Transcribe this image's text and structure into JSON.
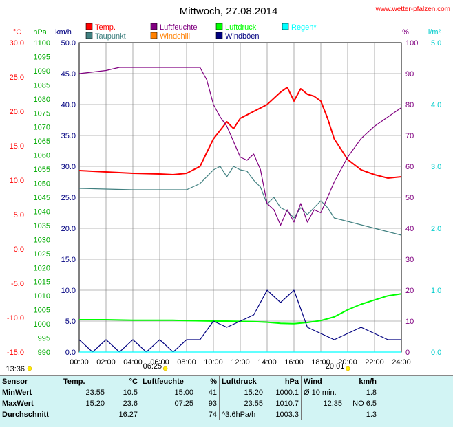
{
  "site_link": "www.wetter-pfalzen.com",
  "chart_data": {
    "type": "line",
    "title": "Mittwoch, 27.08.2014",
    "legend": [
      {
        "name": "Temp.",
        "color": "#ff0000"
      },
      {
        "name": "Taupunkt",
        "color": "#408080"
      },
      {
        "name": "Luftfeuchte",
        "color": "#800080"
      },
      {
        "name": "Windchill",
        "color": "#ff8000"
      },
      {
        "name": "Luftdruck",
        "color": "#00ff00"
      },
      {
        "name": "Windböen",
        "color": "#000080"
      },
      {
        "name": "Regen*",
        "color": "#00ffff"
      }
    ],
    "axes": {
      "temp": {
        "unit": "°C",
        "color": "#ff0000",
        "min": -15,
        "max": 30,
        "ticks": [
          "30.0",
          "25.0",
          "20.0",
          "15.0",
          "10.0",
          "5.0",
          "0.0",
          "-5.0",
          "-10.0",
          "-15.0"
        ]
      },
      "pressure": {
        "unit": "hPa",
        "color": "#00aa00",
        "min": 990,
        "max": 1100,
        "ticks": [
          "1100",
          "1095",
          "1090",
          "1085",
          "1080",
          "1075",
          "1070",
          "1065",
          "1060",
          "1055",
          "1050",
          "1045",
          "1040",
          "1035",
          "1030",
          "1025",
          "1020",
          "1015",
          "1010",
          "1005",
          "1000",
          "995",
          "990"
        ]
      },
      "wind": {
        "unit": "km/h",
        "color": "#000080",
        "min": 0,
        "max": 50,
        "ticks": [
          "50.0",
          "45.0",
          "40.0",
          "35.0",
          "30.0",
          "25.0",
          "20.0",
          "15.0",
          "10.0",
          "5.0",
          "0.0"
        ]
      },
      "humidity": {
        "unit": "%",
        "color": "#800080",
        "min": 0,
        "max": 100,
        "ticks": [
          "100",
          "90",
          "80",
          "70",
          "60",
          "50",
          "40",
          "30",
          "20",
          "10",
          "0"
        ]
      },
      "rain": {
        "unit": "l/m²",
        "color": "#00cccc",
        "min": 0,
        "max": 5,
        "ticks": [
          "5.0",
          "4.0",
          "3.0",
          "2.0",
          "1.0",
          "0.0"
        ]
      },
      "x": {
        "min": 0,
        "max": 24,
        "ticks": [
          "00:00",
          "02:00",
          "04:00",
          "06:00",
          "08:00",
          "10:00",
          "12:00",
          "14:00",
          "16:00",
          "18:00",
          "20:00",
          "22:00",
          "24:00"
        ]
      }
    },
    "grid": true,
    "sunrise": "06:25",
    "sunset": "20:01",
    "moonrise": "13:36",
    "series": [
      {
        "name": "Temp.",
        "axis": "temp",
        "x": [
          0,
          2,
          4,
          6,
          7,
          8,
          9,
          10,
          11,
          11.5,
          12,
          12.5,
          13,
          14,
          15,
          15.5,
          16,
          16.5,
          17,
          17.5,
          18,
          18.5,
          19,
          20,
          21,
          22,
          23,
          24
        ],
        "y": [
          11.4,
          11.2,
          11.0,
          10.9,
          10.8,
          11.0,
          12.0,
          16.0,
          18.5,
          17.5,
          19.0,
          19.5,
          20.0,
          21.0,
          22.8,
          23.5,
          21.5,
          23.3,
          22.5,
          22.2,
          21.5,
          19.0,
          16.0,
          13.0,
          11.5,
          10.8,
          10.3,
          10.5
        ]
      },
      {
        "name": "Taupunkt",
        "axis": "temp",
        "x": [
          0,
          2,
          4,
          6,
          8,
          9,
          10,
          10.5,
          11,
          11.5,
          12,
          12.5,
          13,
          13.5,
          14,
          14.5,
          15,
          15.5,
          16,
          16.5,
          17,
          17.5,
          18,
          18.5,
          19,
          20,
          22,
          24
        ],
        "y": [
          8.8,
          8.7,
          8.6,
          8.6,
          8.6,
          9.5,
          11.5,
          12.0,
          10.5,
          12.0,
          11.5,
          11.3,
          10.0,
          9.0,
          6.5,
          7.5,
          6.0,
          5.5,
          4.5,
          6.0,
          5.0,
          6.0,
          7.0,
          6.0,
          4.5,
          4.0,
          3.0,
          2.0
        ]
      },
      {
        "name": "Luftfeuchte",
        "axis": "humidity",
        "x": [
          0,
          2,
          3,
          4,
          6,
          7,
          8,
          9,
          9.5,
          10,
          10.5,
          11,
          11.5,
          12,
          12.5,
          13,
          13.5,
          14,
          14.5,
          15,
          15.5,
          16,
          16.5,
          17,
          17.5,
          18,
          18.5,
          19,
          20,
          21,
          22,
          23,
          24
        ],
        "y": [
          90,
          91,
          92,
          92,
          92,
          92,
          92,
          92,
          88,
          80,
          76,
          73,
          68,
          63,
          62,
          64,
          59,
          48,
          46,
          41,
          46,
          42,
          48,
          42,
          46,
          45,
          50,
          55,
          63,
          69,
          73,
          76,
          79
        ]
      },
      {
        "name": "Luftdruck",
        "axis": "pressure",
        "x": [
          0,
          2,
          3,
          4,
          6,
          7,
          8,
          9,
          10,
          11,
          12,
          13,
          14,
          15,
          16,
          17,
          18,
          19,
          20,
          21,
          22,
          23,
          24
        ],
        "y": [
          1001.5,
          1001.5,
          1001.4,
          1001.3,
          1001.3,
          1001.3,
          1001.2,
          1001.1,
          1001.0,
          1001.0,
          1000.9,
          1000.8,
          1000.6,
          1000.2,
          1000.1,
          1000.5,
          1001.2,
          1002.5,
          1005.0,
          1007.0,
          1008.5,
          1010.0,
          1010.7
        ]
      },
      {
        "name": "Windböen",
        "axis": "wind",
        "x": [
          0,
          1,
          2,
          3,
          4,
          5,
          6,
          7,
          8,
          9,
          10,
          11,
          12,
          13,
          14,
          15,
          16,
          17,
          18,
          19,
          20,
          21,
          22,
          23,
          24
        ],
        "y": [
          2,
          0,
          2,
          0,
          2,
          0,
          2,
          0,
          2,
          2,
          5,
          4,
          5,
          6,
          10,
          8,
          10,
          4,
          3,
          2,
          3,
          4,
          3,
          2,
          2
        ]
      },
      {
        "name": "Regen*",
        "axis": "rain",
        "x": [
          0,
          24
        ],
        "y": [
          0,
          0
        ]
      }
    ]
  },
  "stats": {
    "headers": {
      "sensor": "Sensor",
      "temp": "Temp.",
      "temp_unit": "°C",
      "hum": "Luftfeuchte",
      "hum_unit": "%",
      "press": "Luftdruck",
      "press_unit": "hPa",
      "wind": "Wind",
      "wind_unit": "km/h"
    },
    "rows": [
      {
        "label": "MinWert",
        "t_time": "23:55",
        "t_val": "10.5",
        "h_time": "15:00",
        "h_val": "41",
        "p_time": "15:20",
        "p_val": "1000.1",
        "w_a": "Ø 10 min.",
        "w_b": "1.8"
      },
      {
        "label": "MaxWert",
        "t_time": "15:20",
        "t_val": "23.6",
        "h_time": "07:25",
        "h_val": "93",
        "p_time": "23:55",
        "p_val": "1010.7",
        "w_a": "12:35",
        "w_b": "NO 6.5"
      },
      {
        "label": "Durchschnitt",
        "t_time": "",
        "t_val": "16.27",
        "h_time": "",
        "h_val": "74",
        "p_time": "^3.6hPa/h",
        "p_val": "1003.3",
        "w_a": "",
        "w_b": "1.3"
      }
    ]
  }
}
